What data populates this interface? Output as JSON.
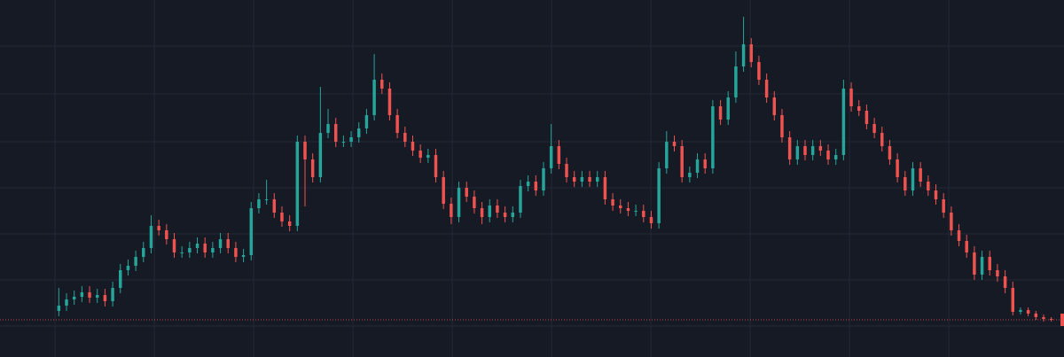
{
  "chart_data": {
    "type": "candlestick",
    "open": [
      52,
      58,
      65,
      68,
      73,
      67,
      70,
      63,
      78,
      98,
      103,
      113,
      123,
      148,
      143,
      133,
      118,
      118,
      123,
      128,
      118,
      123,
      133,
      123,
      113,
      115,
      168,
      178,
      178,
      163,
      153,
      148,
      243,
      223,
      203,
      253,
      263,
      243,
      243,
      248,
      258,
      273,
      313,
      303,
      273,
      253,
      243,
      233,
      225,
      228,
      203,
      173,
      158,
      191,
      181,
      168,
      158,
      171,
      163,
      158,
      163,
      193,
      198,
      188,
      213,
      238,
      218,
      203,
      198,
      203,
      198,
      203,
      178,
      171,
      168,
      165,
      165,
      158,
      151,
      213,
      243,
      238,
      203,
      208,
      223,
      213,
      283,
      268,
      293,
      328,
      353,
      333,
      313,
      293,
      273,
      248,
      223,
      238,
      228,
      238,
      233,
      223,
      228,
      303,
      283,
      278,
      263,
      253,
      238,
      223,
      203,
      188,
      213,
      198,
      188,
      178,
      163,
      143,
      131,
      118,
      93,
      113,
      98,
      91,
      78,
      51,
      53,
      49,
      45,
      43
    ],
    "high": [
      78,
      72,
      75,
      80,
      80,
      77,
      77,
      85,
      105,
      110,
      120,
      130,
      160,
      155,
      150,
      140,
      125,
      130,
      135,
      135,
      130,
      140,
      140,
      130,
      122,
      175,
      185,
      200,
      185,
      170,
      160,
      250,
      250,
      230,
      305,
      280,
      270,
      250,
      255,
      265,
      280,
      342,
      320,
      310,
      280,
      260,
      250,
      240,
      235,
      235,
      210,
      180,
      198,
      198,
      188,
      175,
      178,
      178,
      170,
      170,
      200,
      205,
      205,
      220,
      263,
      245,
      225,
      210,
      210,
      210,
      210,
      210,
      185,
      178,
      175,
      172,
      172,
      165,
      220,
      255,
      250,
      245,
      215,
      230,
      230,
      290,
      290,
      300,
      345,
      384,
      360,
      340,
      320,
      300,
      280,
      255,
      245,
      245,
      245,
      245,
      240,
      235,
      313,
      310,
      290,
      285,
      270,
      260,
      245,
      230,
      210,
      220,
      220,
      205,
      195,
      185,
      170,
      150,
      138,
      125,
      120,
      120,
      105,
      98,
      85,
      56,
      56,
      52,
      48,
      45
    ],
    "low": [
      46,
      52,
      59,
      62,
      61,
      61,
      57,
      57,
      72,
      92,
      97,
      107,
      117,
      137,
      127,
      112,
      112,
      112,
      117,
      112,
      112,
      117,
      117,
      107,
      107,
      109,
      162,
      172,
      157,
      147,
      142,
      142,
      170,
      197,
      197,
      247,
      237,
      237,
      237,
      242,
      252,
      267,
      297,
      267,
      247,
      237,
      227,
      219,
      219,
      197,
      167,
      150,
      152,
      175,
      162,
      150,
      152,
      157,
      152,
      152,
      157,
      187,
      182,
      182,
      207,
      212,
      197,
      192,
      192,
      192,
      192,
      172,
      165,
      162,
      159,
      159,
      152,
      145,
      145,
      207,
      232,
      197,
      197,
      202,
      207,
      207,
      262,
      262,
      287,
      322,
      327,
      307,
      287,
      267,
      242,
      217,
      217,
      222,
      222,
      227,
      217,
      217,
      222,
      277,
      272,
      257,
      247,
      232,
      217,
      197,
      182,
      182,
      192,
      182,
      172,
      157,
      137,
      125,
      112,
      87,
      87,
      92,
      85,
      72,
      47,
      48,
      46,
      42,
      40,
      40
    ],
    "close": [
      58,
      65,
      68,
      73,
      67,
      70,
      63,
      78,
      98,
      103,
      113,
      123,
      148,
      143,
      133,
      118,
      118,
      123,
      128,
      118,
      123,
      133,
      123,
      113,
      115,
      168,
      178,
      178,
      163,
      153,
      148,
      243,
      223,
      203,
      253,
      263,
      243,
      243,
      248,
      258,
      273,
      313,
      303,
      273,
      253,
      243,
      233,
      225,
      228,
      203,
      173,
      158,
      191,
      181,
      168,
      158,
      171,
      163,
      158,
      163,
      193,
      198,
      188,
      213,
      238,
      218,
      203,
      198,
      203,
      198,
      203,
      178,
      171,
      168,
      165,
      165,
      158,
      151,
      213,
      243,
      238,
      203,
      208,
      223,
      213,
      283,
      268,
      293,
      328,
      353,
      333,
      313,
      293,
      273,
      248,
      223,
      238,
      228,
      238,
      233,
      223,
      228,
      303,
      283,
      278,
      263,
      253,
      238,
      223,
      203,
      188,
      213,
      198,
      188,
      178,
      163,
      143,
      131,
      118,
      93,
      113,
      98,
      91,
      78,
      51,
      53,
      49,
      45,
      43,
      42
    ],
    "up_color": "#26a69a",
    "down_color": "#ef5350",
    "ylim": [
      0,
      403
    ]
  }
}
